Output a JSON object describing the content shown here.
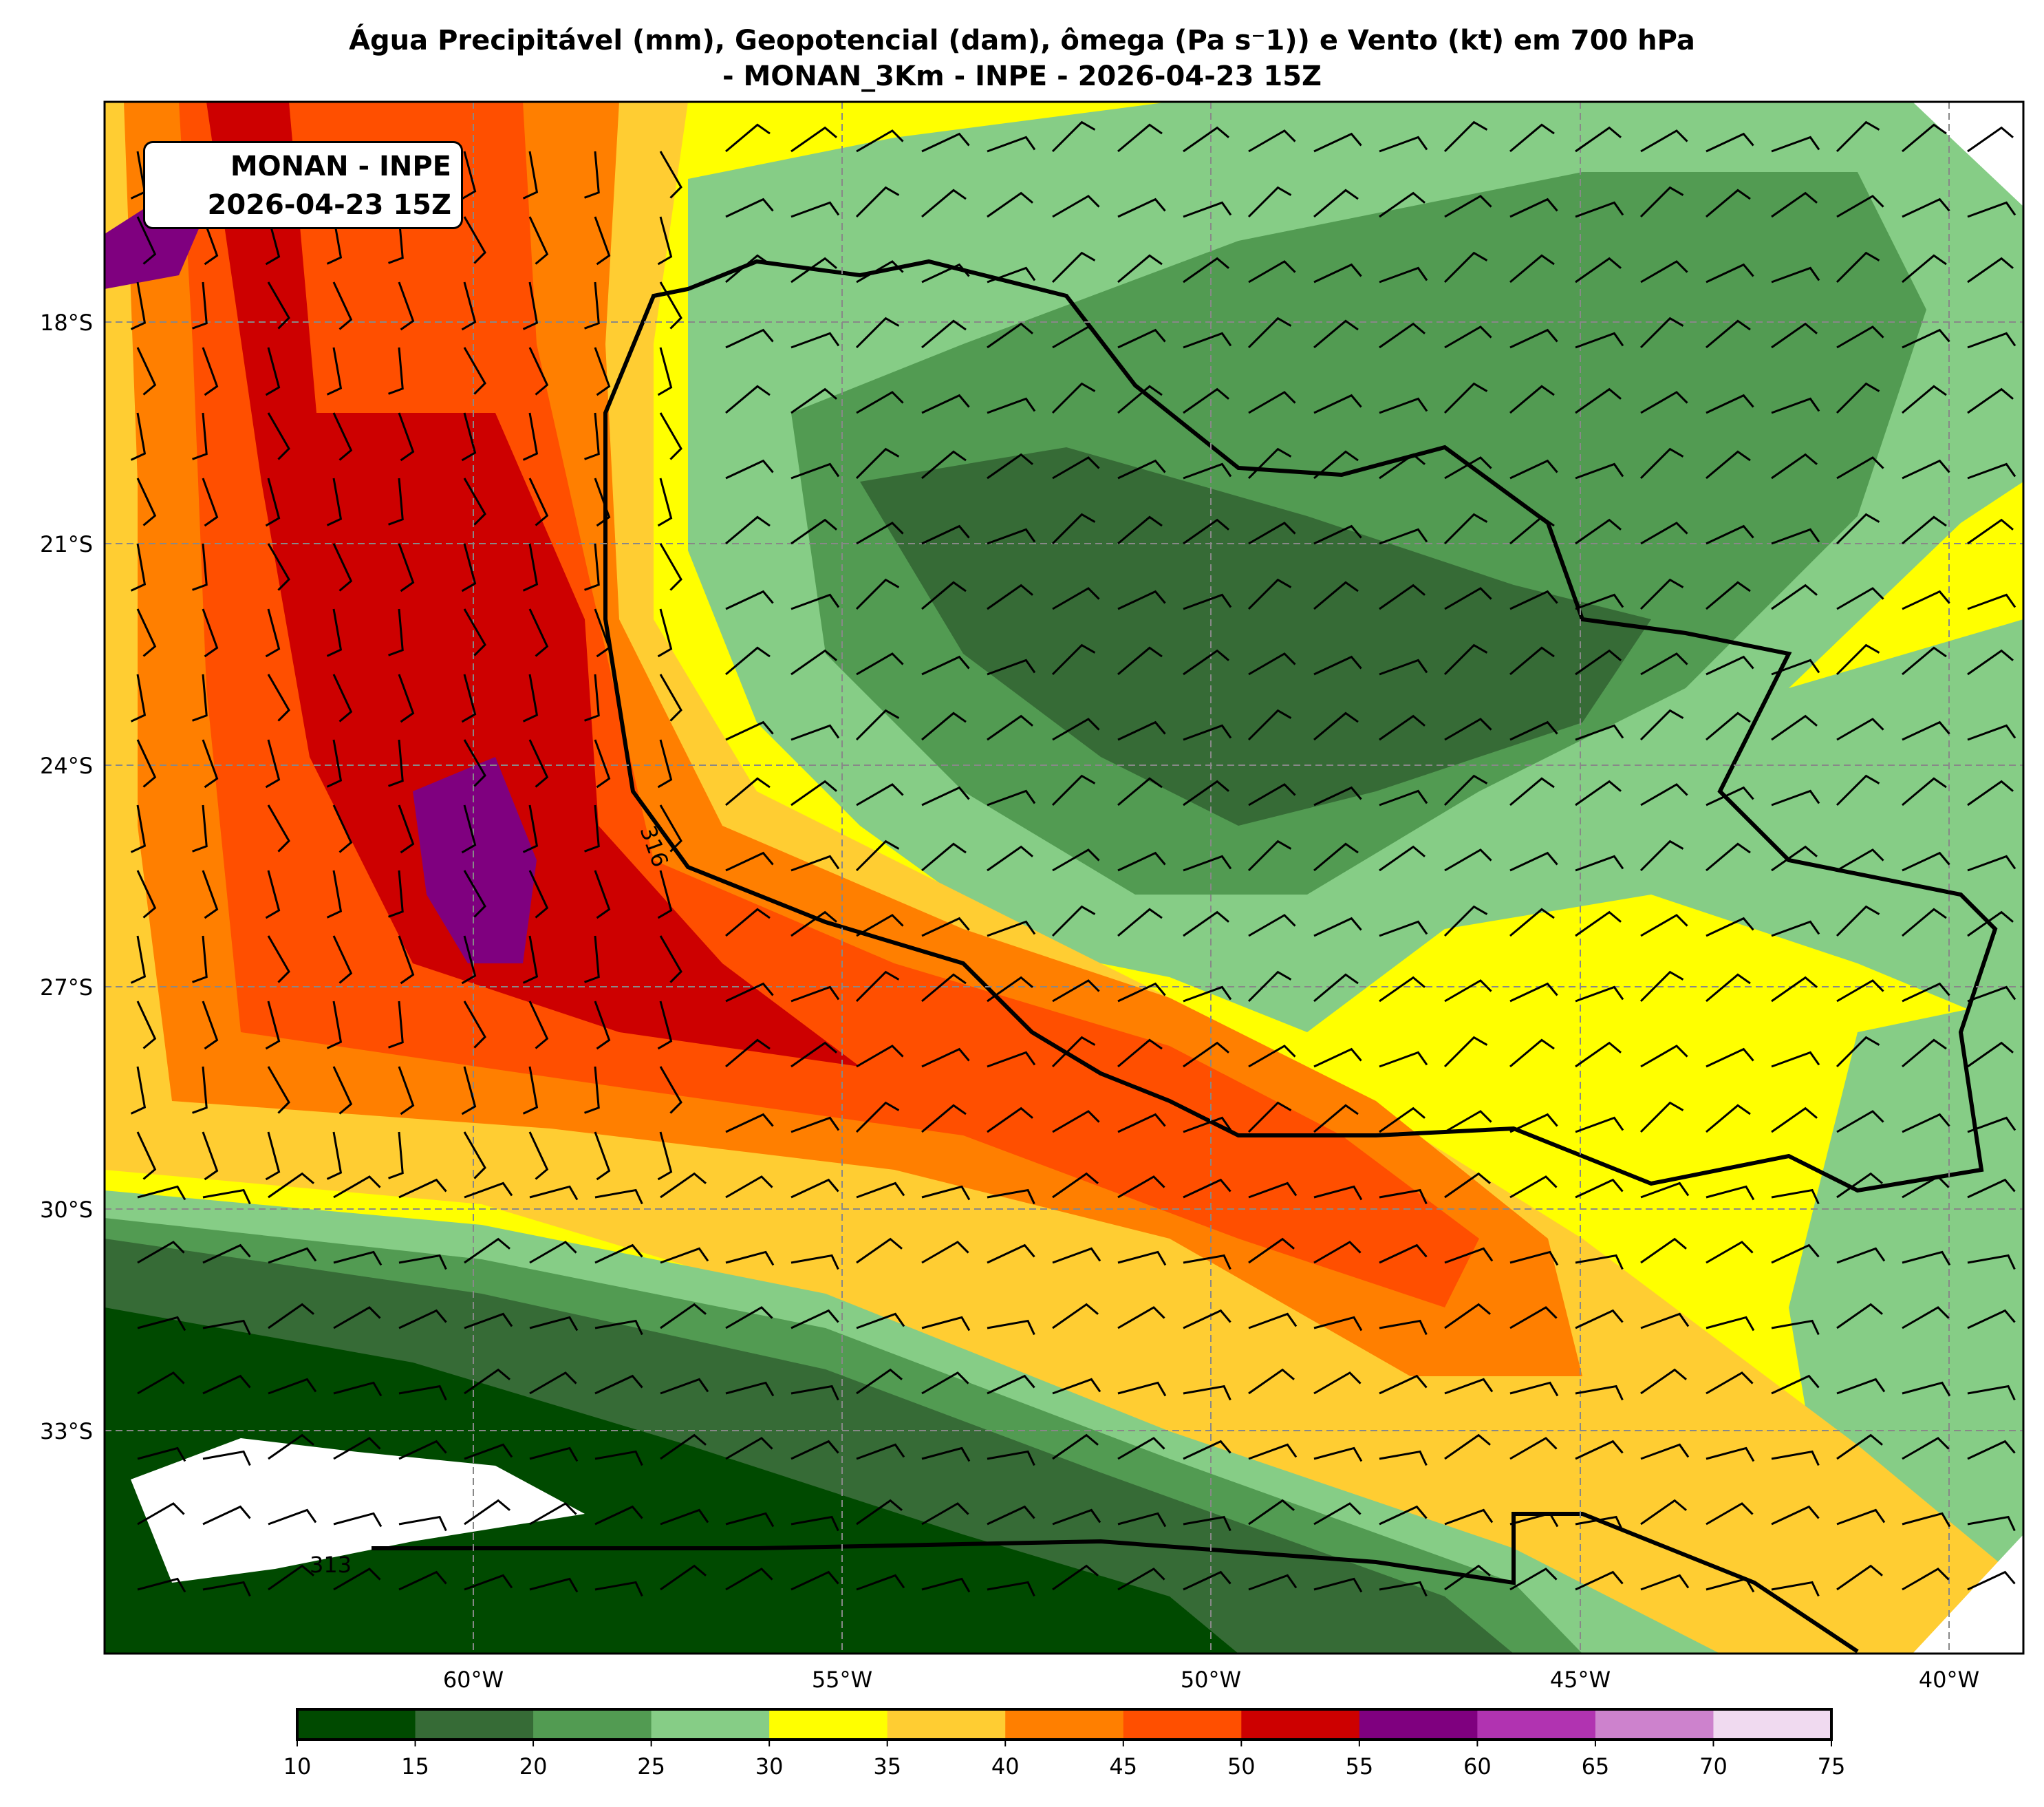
{
  "title": {
    "line1": "Água Precipitável (mm), Geopotencial (dam), ômega (Pa s⁻1)) e Vento (kt) em 700 hPa",
    "line2": "- MONAN_3Km - INPE - 2026-04-23 15Z"
  },
  "info_box": {
    "line1": "MONAN - INPE",
    "line2": "2026-04-23 15Z"
  },
  "map": {
    "lon_labels": [
      "60°W",
      "55°W",
      "50°W",
      "45°W",
      "40°W"
    ],
    "lat_labels": [
      "18°S",
      "21°S",
      "24°S",
      "27°S",
      "30°S",
      "33°S"
    ],
    "contour_labels": [
      "316",
      "313"
    ],
    "gridlines": "dashed gray"
  },
  "colorbar": {
    "ticks": [
      "10",
      "15",
      "20",
      "25",
      "30",
      "35",
      "40",
      "45",
      "50",
      "55",
      "60",
      "65",
      "70",
      "75"
    ],
    "colors": [
      "#004a00",
      "#366b36",
      "#529b52",
      "#86cd86",
      "#ffff00",
      "#ffcd32",
      "#ff7f00",
      "#ff4f00",
      "#cd0000",
      "#7f007f",
      "#b133b1",
      "#cd82cd",
      "#f0daf0"
    ]
  }
}
